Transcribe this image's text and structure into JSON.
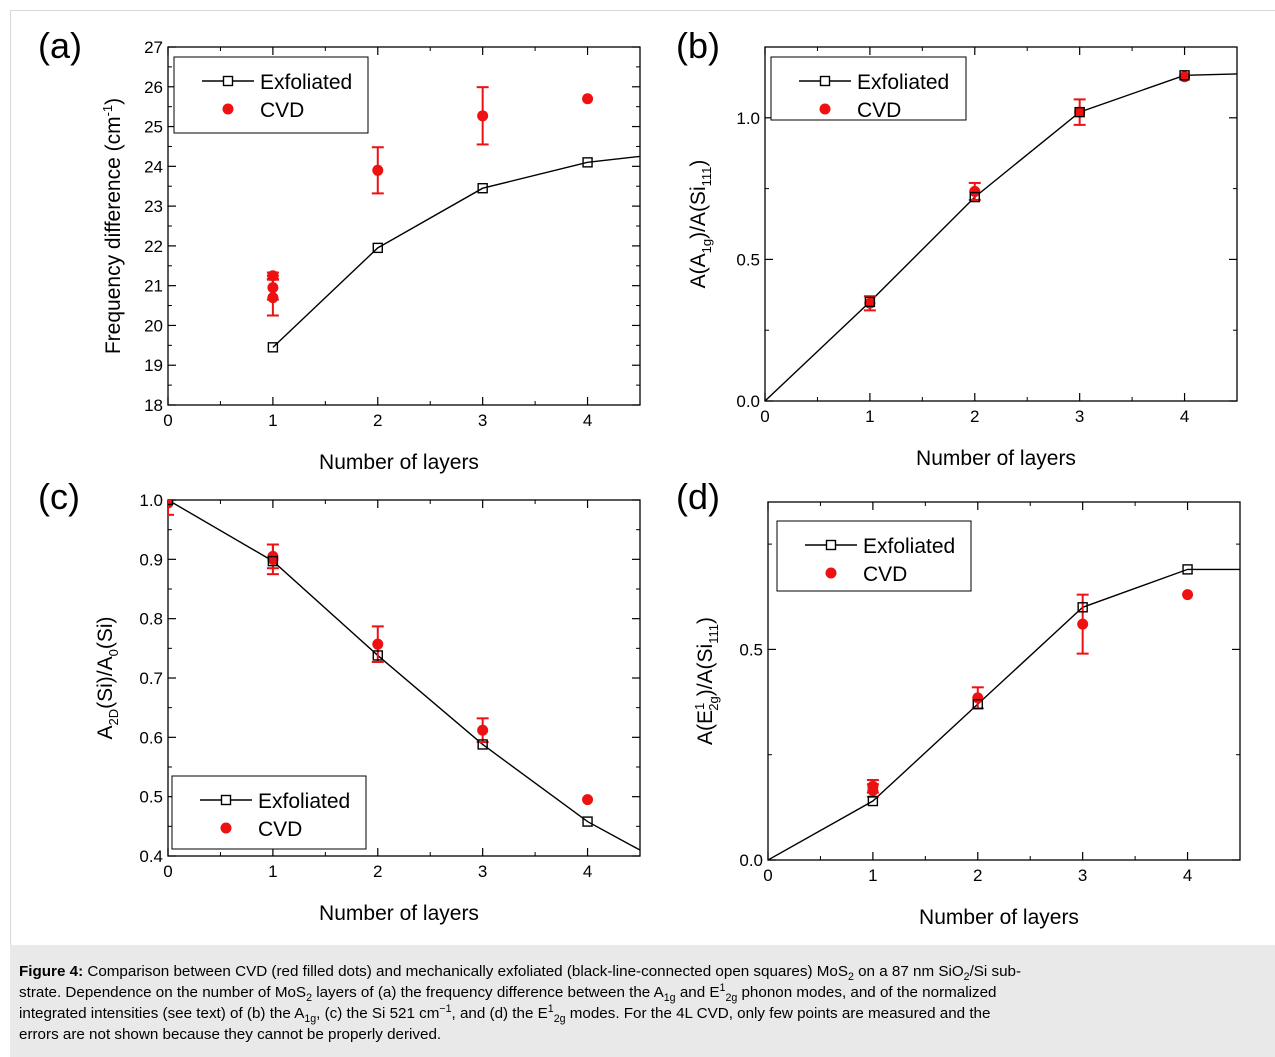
{
  "colors": {
    "exfoliated": "#000000",
    "cvd": "#ee1111",
    "caption_bg": "#e9e9e9"
  },
  "chart_data": [
    {
      "type": "scatter",
      "panel_label": "(a)",
      "xlabel": "Number of layers",
      "ylabel": "Frequency difference (cm",
      "ylabel_sup": "-1",
      "ylabel_tail": ")",
      "xlim": [
        0,
        4.5
      ],
      "ylim": [
        18,
        27
      ],
      "xticks": [
        0,
        1,
        2,
        3,
        4
      ],
      "xtick_labels": [
        "0",
        "1",
        "2",
        "3",
        "4"
      ],
      "yticks": [
        18,
        19,
        20,
        21,
        22,
        23,
        24,
        25,
        26,
        27
      ],
      "ytick_labels": [
        "18",
        "19",
        "20",
        "21",
        "22",
        "23",
        "24",
        "25",
        "26",
        "27"
      ],
      "legend": {
        "position": "top-left",
        "entries": [
          "Exfoliated",
          "CVD"
        ]
      },
      "series": [
        {
          "name": "Exfoliated",
          "style": "line-open-square",
          "x": [
            1,
            2,
            3,
            4
          ],
          "y": [
            19.45,
            21.95,
            23.45,
            24.1
          ],
          "line_x": [
            1,
            2,
            3,
            4,
            4.5
          ],
          "line_y": [
            19.45,
            21.95,
            23.45,
            24.1,
            24.25
          ]
        },
        {
          "name": "CVD",
          "style": "filled-dot",
          "x": [
            1,
            1,
            1,
            2,
            3,
            4
          ],
          "y": [
            21.25,
            20.95,
            20.7,
            23.9,
            25.27,
            25.7
          ],
          "err": [
            0.08,
            0.3,
            0.45,
            0.58,
            0.72,
            null
          ]
        }
      ]
    },
    {
      "type": "scatter",
      "panel_label": "(b)",
      "xlabel": "Number of layers",
      "ylabel_parts": [
        "A(A",
        "1g",
        ")/A(Si",
        "111",
        ")"
      ],
      "xlim": [
        0,
        4.5
      ],
      "ylim": [
        0,
        1.25
      ],
      "xticks": [
        0,
        1,
        2,
        3,
        4
      ],
      "xtick_labels": [
        "0",
        "1",
        "2",
        "3",
        "4"
      ],
      "yticks": [
        0,
        0.5,
        1.0
      ],
      "ytick_labels": [
        "0.0",
        "0.5",
        "1.0"
      ],
      "legend": {
        "position": "top-left",
        "entries": [
          "Exfoliated",
          "CVD"
        ]
      },
      "series": [
        {
          "name": "Exfoliated",
          "style": "line-open-square",
          "x": [
            1,
            2,
            3,
            4
          ],
          "y": [
            0.35,
            0.72,
            1.02,
            1.15
          ],
          "line_x": [
            0,
            1,
            2,
            3,
            4,
            4.5
          ],
          "line_y": [
            0,
            0.35,
            0.72,
            1.02,
            1.15,
            1.155
          ]
        },
        {
          "name": "CVD",
          "style": "filled-dot",
          "x": [
            1,
            2,
            3,
            4
          ],
          "y": [
            0.345,
            0.74,
            1.02,
            1.145
          ],
          "err": [
            0.025,
            0.03,
            0.045,
            null
          ]
        }
      ]
    },
    {
      "type": "scatter",
      "panel_label": "(c)",
      "xlabel": "Number of layers",
      "ylabel_parts": [
        "A",
        "2D",
        "(Si)/A",
        "0",
        "(Si)"
      ],
      "xlim": [
        0,
        4.5
      ],
      "ylim": [
        0.4,
        1.0
      ],
      "xticks": [
        0,
        1,
        2,
        3,
        4
      ],
      "xtick_labels": [
        "0",
        "1",
        "2",
        "3",
        "4"
      ],
      "yticks": [
        0.4,
        0.5,
        0.6,
        0.7,
        0.8,
        0.9,
        1.0
      ],
      "ytick_labels": [
        "0.4",
        "0.5",
        "0.6",
        "0.7",
        "0.8",
        "0.9",
        "1.0"
      ],
      "legend": {
        "position": "bottom-left",
        "entries": [
          "Exfoliated",
          "CVD"
        ]
      },
      "series": [
        {
          "name": "Exfoliated",
          "style": "line-open-square",
          "x": [
            0,
            1,
            2,
            3,
            4
          ],
          "y": [
            1.0,
            0.897,
            0.738,
            0.588,
            0.458
          ],
          "line_x": [
            0,
            1,
            2,
            3,
            4,
            4.5
          ],
          "line_y": [
            1.0,
            0.897,
            0.738,
            0.588,
            0.458,
            0.41
          ]
        },
        {
          "name": "CVD",
          "style": "filled-dot",
          "x": [
            0,
            1,
            1,
            2,
            3,
            4
          ],
          "y": [
            0.995,
            0.9,
            0.905,
            0.757,
            0.612,
            0.495
          ],
          "err": [
            0.02,
            0.025,
            0.02,
            0.03,
            0.02,
            null
          ]
        }
      ]
    },
    {
      "type": "scatter",
      "panel_label": "(d)",
      "xlabel": "Number of layers",
      "ylabel_parts": [
        "A(E",
        "1",
        "2g",
        ")/A(Si",
        "111",
        ")"
      ],
      "xlim": [
        0,
        4.5
      ],
      "ylim": [
        0,
        0.85
      ],
      "xticks": [
        0,
        1,
        2,
        3,
        4
      ],
      "xtick_labels": [
        "0",
        "1",
        "2",
        "3",
        "4"
      ],
      "yticks": [
        0,
        0.5
      ],
      "ytick_labels": [
        "0.0",
        "0.5"
      ],
      "legend": {
        "position": "top-left",
        "entries": [
          "Exfoliated",
          "CVD"
        ]
      },
      "series": [
        {
          "name": "Exfoliated",
          "style": "line-open-square",
          "x": [
            1,
            2,
            3,
            4
          ],
          "y": [
            0.14,
            0.37,
            0.6,
            0.69
          ],
          "line_x": [
            0,
            1,
            2,
            3,
            4,
            4.5
          ],
          "line_y": [
            0,
            0.14,
            0.37,
            0.6,
            0.69,
            0.69
          ]
        },
        {
          "name": "CVD",
          "style": "filled-dot",
          "x": [
            1,
            1,
            2,
            3,
            4
          ],
          "y": [
            0.175,
            0.165,
            0.385,
            0.56,
            0.63
          ],
          "err": [
            0.015,
            0.015,
            0.025,
            0.07,
            null
          ]
        }
      ]
    }
  ],
  "caption": {
    "bold": "Figure 4:",
    "line1": " Comparison between CVD (red filled dots) and mechanically exfoliated (black-line-connected open squares) MoS",
    "line1_b": " on a 87 nm SiO",
    "line1_c": "/Si sub-",
    "line2": "strate. Dependence on the number of MoS",
    "line2_b": " layers of (a) the frequency difference between the A",
    "line2_c": " and E",
    "line2_d": " phonon modes, and of the normalized",
    "line3": "integrated intensities (see text) of (b) the A",
    "line3_b": ", (c) the Si 521 cm",
    "line3_c": ", and (d) the E",
    "line3_d": " modes. For the 4L CVD, only few points are measured and the",
    "line4": "errors are not shown because they cannot be properly derived.",
    "sub_2": "2",
    "sub_1g": "1g",
    "sup_1": "1",
    "sub_2g": "2g",
    "sup_minus1": "−1"
  }
}
